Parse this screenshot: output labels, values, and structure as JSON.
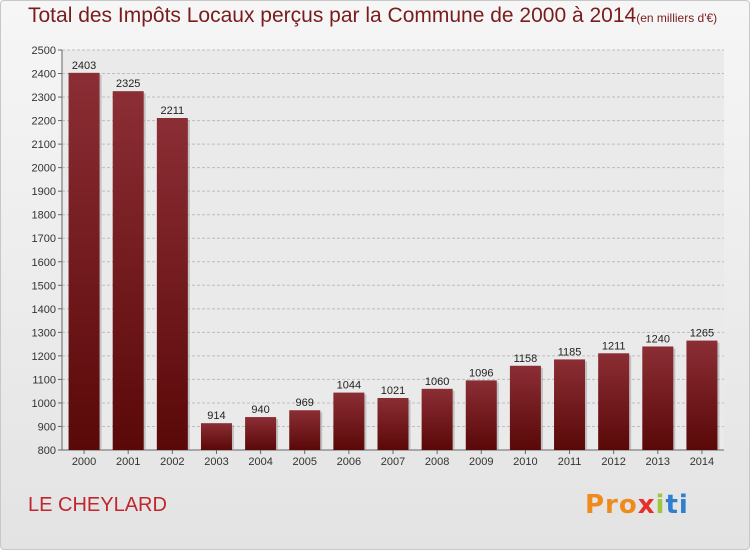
{
  "title": "Total des Impôts Locaux perçus par la Commune de 2000 à 2014",
  "unit_label": "(en milliers d'€)",
  "commune": "LE CHEYLARD",
  "logo": {
    "p1": "Pro",
    "p2": "x",
    "p3": "i",
    "p4": "ti"
  },
  "colors": {
    "bar_top": "#8b2e35",
    "bar_bottom": "#5a0808",
    "title": "#7a1c1c",
    "commune": "#c0272d"
  },
  "chart_data": {
    "type": "bar",
    "title": "Total des Impôts Locaux perçus par la Commune de 2000 à 2014",
    "xlabel": "",
    "ylabel": "",
    "categories": [
      "2000",
      "2001",
      "2002",
      "2003",
      "2004",
      "2005",
      "2006",
      "2007",
      "2008",
      "2009",
      "2010",
      "2011",
      "2012",
      "2013",
      "2014"
    ],
    "values": [
      2403,
      2325,
      2211,
      914,
      940,
      969,
      1044,
      1021,
      1060,
      1096,
      1158,
      1185,
      1211,
      1240,
      1265
    ],
    "ylim": [
      800,
      2500
    ],
    "yticks": [
      800,
      900,
      1000,
      1100,
      1200,
      1300,
      1400,
      1500,
      1600,
      1700,
      1800,
      1900,
      2000,
      2100,
      2200,
      2300,
      2400,
      2500
    ],
    "grid": true
  }
}
